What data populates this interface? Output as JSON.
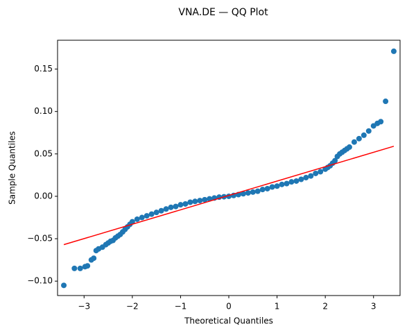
{
  "chart_data": {
    "type": "scatter",
    "title": "VNA.DE — QQ Plot",
    "x_label": "Theoretical Quantiles",
    "y_label": "Sample Quantiles",
    "color": "#1f77b4",
    "x": [
      -3.42,
      -3.2,
      -3.08,
      -2.98,
      -2.93,
      -2.85,
      -2.8,
      -2.75,
      -2.7,
      -2.62,
      -2.55,
      -2.5,
      -2.45,
      -2.4,
      -2.35,
      -2.3,
      -2.25,
      -2.2,
      -2.15,
      -2.1,
      -2.05,
      -2.0,
      -1.9,
      -1.8,
      -1.7,
      -1.6,
      -1.5,
      -1.4,
      -1.3,
      -1.2,
      -1.1,
      -1.0,
      -0.9,
      -0.8,
      -0.7,
      -0.6,
      -0.5,
      -0.4,
      -0.3,
      -0.2,
      -0.1,
      0,
      0.1,
      0.2,
      0.3,
      0.4,
      0.5,
      0.6,
      0.7,
      0.8,
      0.9,
      1.0,
      1.1,
      1.2,
      1.3,
      1.4,
      1.5,
      1.6,
      1.7,
      1.8,
      1.9,
      2.0,
      2.05,
      2.1,
      2.15,
      2.2,
      2.25,
      2.3,
      2.35,
      2.4,
      2.45,
      2.5,
      2.6,
      2.7,
      2.8,
      2.9,
      3.0,
      3.08,
      3.15,
      3.25,
      3.42
    ],
    "values": [
      -0.105,
      -0.085,
      -0.085,
      -0.083,
      -0.082,
      -0.075,
      -0.073,
      -0.064,
      -0.062,
      -0.06,
      -0.057,
      -0.055,
      -0.053,
      -0.052,
      -0.049,
      -0.047,
      -0.045,
      -0.042,
      -0.039,
      -0.036,
      -0.033,
      -0.03,
      -0.027,
      -0.025,
      -0.023,
      -0.021,
      -0.019,
      -0.017,
      -0.015,
      -0.013,
      -0.012,
      -0.01,
      -0.009,
      -0.007,
      -0.006,
      -0.005,
      -0.004,
      -0.003,
      -0.002,
      -0.001,
      -0.0005,
      0,
      0.001,
      0.002,
      0.003,
      0.004,
      0.005,
      0.006,
      0.008,
      0.009,
      0.011,
      0.012,
      0.014,
      0.015,
      0.017,
      0.018,
      0.02,
      0.022,
      0.024,
      0.027,
      0.029,
      0.032,
      0.034,
      0.036,
      0.039,
      0.042,
      0.047,
      0.05,
      0.052,
      0.054,
      0.056,
      0.058,
      0.064,
      0.068,
      0.072,
      0.077,
      0.083,
      0.086,
      0.088,
      0.112,
      0.171
    ],
    "reference_line": {
      "x": [
        -3.42,
        3.42
      ],
      "values": [
        -0.057,
        0.059
      ],
      "color": "#ff0000"
    },
    "xlim": [
      -3.55,
      3.55
    ],
    "xticks": [
      {
        "value": -3,
        "label": "−3"
      },
      {
        "value": -2,
        "label": "−2"
      },
      {
        "value": -1,
        "label": "−1"
      },
      0,
      1,
      2,
      3
    ],
    "ylim": [
      -0.117,
      0.184
    ],
    "yticks": [
      {
        "value": -0.1,
        "label": "−0.10"
      },
      {
        "value": -0.05,
        "label": "−0.05"
      },
      {
        "value": 0,
        "label": "0.00"
      },
      0.05,
      {
        "value": 0.1,
        "label": "0.10"
      },
      0.15
    ],
    "grid": false
  }
}
